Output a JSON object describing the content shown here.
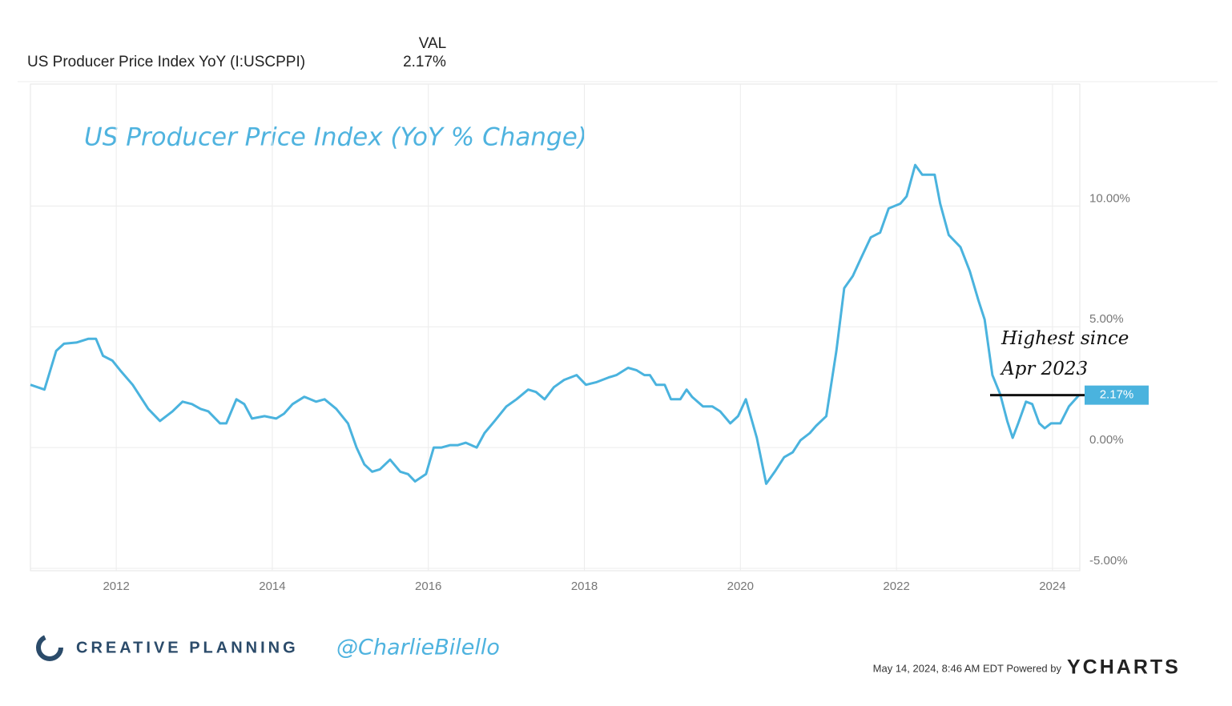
{
  "chart_data": {
    "type": "line",
    "header": {
      "series_label": "US Producer Price Index YoY (I:USCPPI)",
      "column": "VAL",
      "value": "2.17%"
    },
    "title": "US Producer Price Index (YoY % Change)",
    "annotation": [
      "Highest since",
      "Apr 2023"
    ],
    "end_label": "2.17%",
    "footer": {
      "brand": "CREATIVE PLANNING",
      "handle": "@CharlieBilello",
      "stamp": "May 14, 2024, 8:46 AM EDT Powered by",
      "provider": "YCHARTS"
    },
    "x": [
      2010.9,
      2011.08,
      2011.23,
      2011.33,
      2011.49,
      2011.64,
      2011.74,
      2011.83,
      2011.95,
      2012.05,
      2012.21,
      2012.41,
      2012.56,
      2012.72,
      2012.85,
      2012.97,
      2013.08,
      2013.18,
      2013.33,
      2013.41,
      2013.54,
      2013.64,
      2013.74,
      2013.9,
      2014.05,
      2014.15,
      2014.26,
      2014.41,
      2014.56,
      2014.67,
      2014.82,
      2014.97,
      2015.08,
      2015.18,
      2015.28,
      2015.38,
      2015.51,
      2015.64,
      2015.74,
      2015.83,
      2015.97,
      2016.07,
      2016.17,
      2016.28,
      2016.38,
      2016.48,
      2016.62,
      2016.72,
      2016.85,
      2017.0,
      2017.13,
      2017.28,
      2017.38,
      2017.49,
      2017.61,
      2017.74,
      2017.9,
      2018.02,
      2018.15,
      2018.31,
      2018.41,
      2018.56,
      2018.67,
      2018.77,
      2018.84,
      2018.92,
      2019.03,
      2019.11,
      2019.23,
      2019.31,
      2019.38,
      2019.52,
      2019.64,
      2019.74,
      2019.87,
      2019.97,
      2020.07,
      2020.21,
      2020.33,
      2020.44,
      2020.56,
      2020.67,
      2020.77,
      2020.89,
      2020.97,
      2021.1,
      2021.23,
      2021.33,
      2021.44,
      2021.54,
      2021.67,
      2021.79,
      2021.9,
      2022.05,
      2022.13,
      2022.24,
      2022.33,
      2022.41,
      2022.49,
      2022.56,
      2022.67,
      2022.82,
      2022.94,
      2023.05,
      2023.13,
      2023.23,
      2023.33,
      2023.42,
      2023.49,
      2023.56,
      2023.66,
      2023.74,
      2023.83,
      2023.9,
      2023.98,
      2024.1,
      2024.21,
      2024.34
    ],
    "series": [
      {
        "name": "US Producer Price Index YoY",
        "color": "#4ab3de",
        "values": [
          2.6,
          2.4,
          4.0,
          4.3,
          4.35,
          4.5,
          4.5,
          3.8,
          3.6,
          3.2,
          2.6,
          1.6,
          1.1,
          1.5,
          1.9,
          1.8,
          1.6,
          1.5,
          1.0,
          1.0,
          2.0,
          1.8,
          1.2,
          1.3,
          1.2,
          1.4,
          1.8,
          2.1,
          1.9,
          2.0,
          1.6,
          1.0,
          0.0,
          -0.7,
          -1.0,
          -0.9,
          -0.5,
          -1.0,
          -1.1,
          -1.4,
          -1.1,
          0.0,
          0.0,
          0.1,
          0.1,
          0.2,
          0.0,
          0.6,
          1.1,
          1.7,
          2.0,
          2.4,
          2.3,
          2.0,
          2.5,
          2.8,
          3.0,
          2.6,
          2.7,
          2.9,
          3.0,
          3.3,
          3.2,
          3.0,
          3.0,
          2.6,
          2.6,
          2.0,
          2.0,
          2.4,
          2.1,
          1.7,
          1.7,
          1.5,
          1.0,
          1.3,
          2.0,
          0.4,
          -1.5,
          -1.0,
          -0.4,
          -0.2,
          0.3,
          0.6,
          0.9,
          1.3,
          4.0,
          6.6,
          7.1,
          7.8,
          8.7,
          8.9,
          9.9,
          10.1,
          10.4,
          11.7,
          11.3,
          11.3,
          11.3,
          10.1,
          8.8,
          8.3,
          7.3,
          6.1,
          5.3,
          3.0,
          2.2,
          1.1,
          0.4,
          1.0,
          1.9,
          1.8,
          1.0,
          0.8,
          1.0,
          1.0,
          1.7,
          2.17
        ]
      }
    ],
    "xlim": [
      2010.9,
      2024.35
    ],
    "xticks": [
      2012,
      2014,
      2016,
      2018,
      2020,
      2022,
      2024
    ],
    "ylim": [
      -5.1,
      15.05
    ],
    "yticks": [
      {
        "value": -5,
        "label": "-5.00%"
      },
      {
        "value": 0,
        "label": "0.00%"
      },
      {
        "value": 5,
        "label": "5.00%"
      },
      {
        "value": 10,
        "label": "10.00%"
      }
    ],
    "grid": true
  }
}
